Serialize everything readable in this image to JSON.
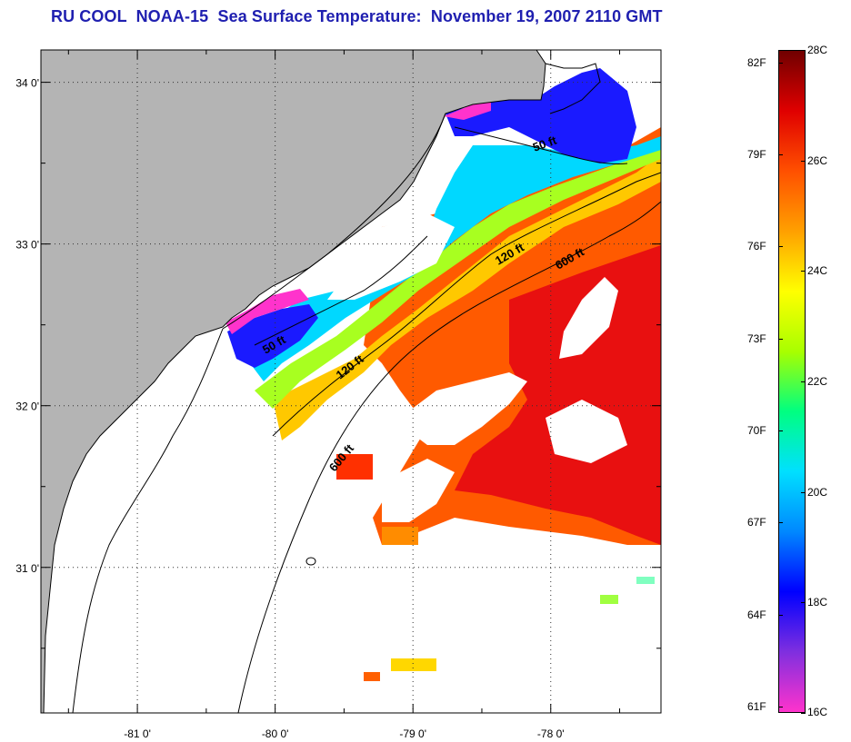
{
  "title": "RU COOL  NOAA-15  Sea Surface Temperature:  November 19, 2007 2110 GMT",
  "map": {
    "lon_range": [
      -81.7,
      -77.2
    ],
    "lat_range": [
      30.1,
      34.2
    ],
    "lat_ticks": [
      {
        "value": 34,
        "label": "34 0'"
      },
      {
        "value": 33,
        "label": "33 0'"
      },
      {
        "value": 32,
        "label": "32 0'"
      },
      {
        "value": 31,
        "label": "31 0'"
      }
    ],
    "lon_ticks": [
      {
        "value": -81,
        "label": "-81 0'"
      },
      {
        "value": -80,
        "label": "-80 0'"
      },
      {
        "value": -79,
        "label": "-79 0'"
      },
      {
        "value": -78,
        "label": "-78 0'"
      }
    ],
    "grid": "dotted",
    "contour_labels": [
      {
        "id": "c50-north",
        "text": "50 ft"
      },
      {
        "id": "c50-south",
        "text": "50 ft"
      },
      {
        "id": "c120-north",
        "text": "120 ft"
      },
      {
        "id": "c120-south",
        "text": "120 ft"
      },
      {
        "id": "c600-north",
        "text": "600 ft"
      },
      {
        "id": "c600-south",
        "text": "600 ft"
      }
    ],
    "colors": {
      "land": "#b4b4b4",
      "cloud": "#ffffff",
      "coastline": "#000000",
      "grid": "#333333"
    }
  },
  "colorbar": {
    "celsius_labels": [
      "28C",
      "26C",
      "24C",
      "22C",
      "20C",
      "18C",
      "16C"
    ],
    "celsius_range": [
      16,
      28
    ],
    "fahrenheit_labels": [
      "82F",
      "79F",
      "76F",
      "73F",
      "70F",
      "67F",
      "64F",
      "61F"
    ],
    "fahrenheit_values": [
      82,
      79,
      76,
      73,
      70,
      67,
      64,
      61
    ],
    "fahrenheit_range": [
      60.8,
      82.4
    ],
    "palette": [
      "#ff33cc",
      "#7f2fdf",
      "#0000ff",
      "#0088ff",
      "#00e0ff",
      "#00ff80",
      "#a8ff00",
      "#ffff00",
      "#ffa000",
      "#ff5000",
      "#e00000",
      "#700000"
    ]
  }
}
